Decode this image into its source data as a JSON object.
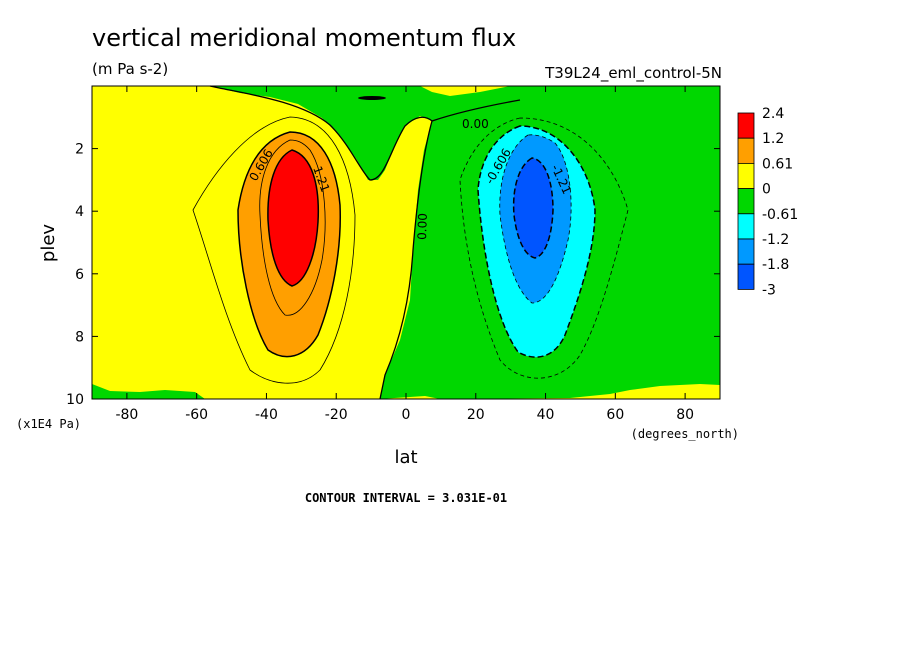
{
  "chart_data": {
    "type": "heatmap",
    "subtype": "filled-contour",
    "title": "vertical meridional momentum flux",
    "units": "(m Pa s-2)",
    "run_label": "T39L24_eml_control-5N",
    "xlabel": "lat",
    "xunits": "(degrees_north)",
    "ylabel": "plev",
    "yunits": "(x1E4 Pa)",
    "xlim": [
      -90,
      90
    ],
    "ylim": [
      10,
      0
    ],
    "x_ticks": [
      -80,
      -60,
      -40,
      -20,
      0,
      20,
      40,
      60,
      80
    ],
    "y_ticks": [
      2,
      4,
      6,
      8,
      10
    ],
    "contour_interval_text": "CONTOUR INTERVAL = 3.031E-01",
    "contour_labels": [
      "0.606",
      "1.21",
      "0.00",
      "0.00",
      "-0.606",
      "-1.21"
    ],
    "colorbar": {
      "labels": [
        "2.4",
        "1.2",
        "0.61",
        "0",
        "-0.61",
        "-1.2",
        "-1.8",
        "-3"
      ],
      "colors": [
        "#ff0000",
        "#ff9f00",
        "#ffff00",
        "#00d700",
        "#00ffff",
        "#0099ff",
        "#0055ff"
      ]
    },
    "features": [
      {
        "name": "positive maximum",
        "lat": -32,
        "plev": 4,
        "value_range": "1.2 to 2.4"
      },
      {
        "name": "negative minimum",
        "lat": 35,
        "plev": 3.5,
        "value_range": "-1.8 to -3"
      }
    ]
  }
}
